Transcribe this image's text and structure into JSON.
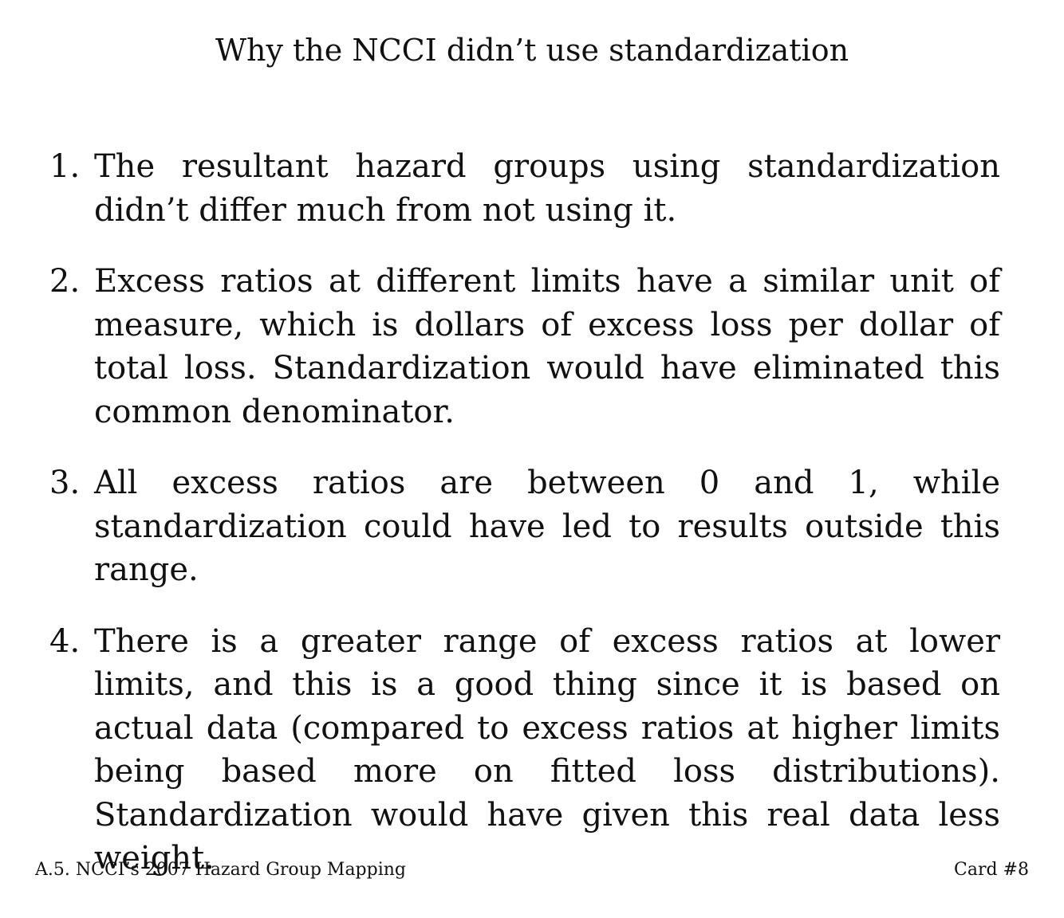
{
  "card": {
    "title": "Why the NCCI didn’t use standardization",
    "reasons": [
      {
        "number": "1.",
        "text": "The resultant hazard groups using standardization didn’t differ much from not using it."
      },
      {
        "number": "2.",
        "text": "Excess ratios at different limits have a similar unit of measure, which is dollars of excess loss per dollar of total loss. Standardization would have eliminated this common denominator."
      },
      {
        "number": "3.",
        "text": "All excess ratios are between 0 and 1, while standardization could have led to results outside this range."
      },
      {
        "number": "4.",
        "text": "There is a greater range of excess ratios at lower limits, and this is a good thing since it is based on actual data (compared to excess ratios at higher limits being based more on fitted loss distributions). Standardization would have given this real data less weight."
      }
    ]
  },
  "footer": {
    "section": "A.5. NCCI’s 2007 Hazard Group Mapping",
    "card_number": "Card #8"
  }
}
